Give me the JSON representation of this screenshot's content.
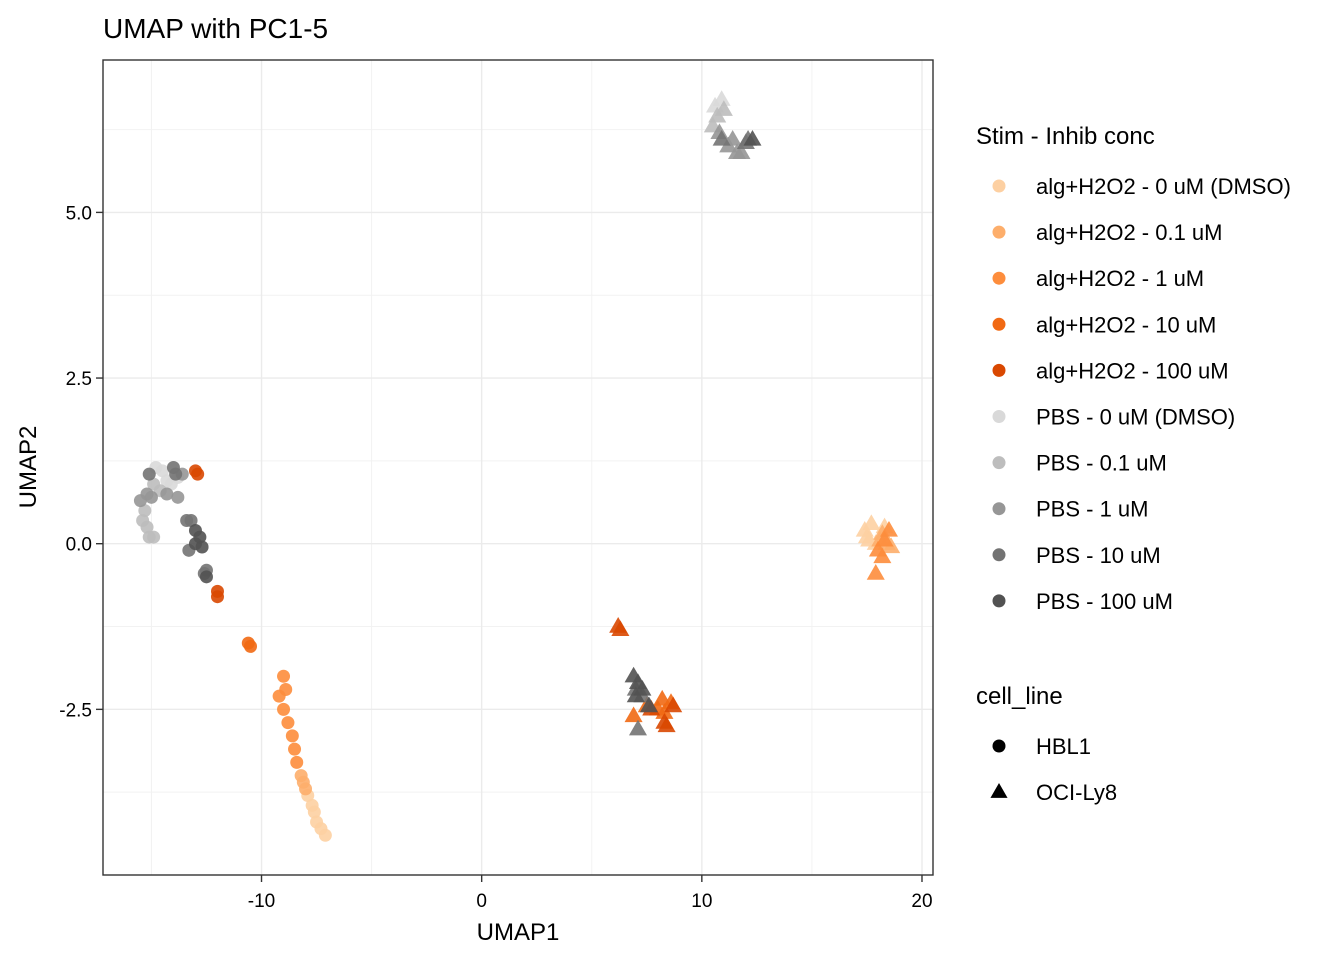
{
  "chart_data": {
    "type": "scatter",
    "title": "UMAP with PC1-5",
    "xlabel": "UMAP1",
    "ylabel": "UMAP2",
    "xlim": [
      -17.2,
      20.5
    ],
    "ylim": [
      -5.0,
      7.3
    ],
    "x_ticks": [
      -10,
      0,
      10,
      20
    ],
    "x_tick_labels": [
      "-10",
      "0",
      "10",
      "20"
    ],
    "y_ticks": [
      -2.5,
      0.0,
      2.5,
      5.0
    ],
    "y_tick_labels": [
      "-2.5",
      "0.0",
      "2.5",
      "5.0"
    ],
    "grid": true,
    "legend_position": "right",
    "color_legend": {
      "title": "Stim - Inhib conc",
      "entries": [
        {
          "label": "alg+H2O2 - 0 uM (DMSO)",
          "color": "#FDD0A2"
        },
        {
          "label": "alg+H2O2 - 0.1 uM",
          "color": "#FDAE6B"
        },
        {
          "label": "alg+H2O2 - 1 uM",
          "color": "#FD8D3C"
        },
        {
          "label": "alg+H2O2 - 10 uM",
          "color": "#F16913"
        },
        {
          "label": "alg+H2O2 - 100 uM",
          "color": "#D94801"
        },
        {
          "label": "PBS - 0 uM (DMSO)",
          "color": "#D9D9D9"
        },
        {
          "label": "PBS - 0.1 uM",
          "color": "#BDBDBD"
        },
        {
          "label": "PBS - 1 uM",
          "color": "#969696"
        },
        {
          "label": "PBS - 10 uM",
          "color": "#737373"
        },
        {
          "label": "PBS - 100 uM",
          "color": "#525252"
        }
      ]
    },
    "shape_legend": {
      "title": "cell_line",
      "entries": [
        {
          "label": "HBL1",
          "shape": "circle"
        },
        {
          "label": "OCI-Ly8",
          "shape": "triangle"
        }
      ]
    },
    "series": [
      {
        "cell_line": "HBL1",
        "group": "alg+H2O2 - 0 uM (DMSO)",
        "points": [
          [
            -7.9,
            -3.8
          ],
          [
            -7.7,
            -3.95
          ],
          [
            -7.6,
            -4.05
          ],
          [
            -7.5,
            -4.2
          ],
          [
            -7.3,
            -4.3
          ],
          [
            -7.1,
            -4.4
          ]
        ]
      },
      {
        "cell_line": "HBL1",
        "group": "alg+H2O2 - 0.1 uM",
        "points": [
          [
            -8.2,
            -3.5
          ],
          [
            -8.1,
            -3.6
          ],
          [
            -8.0,
            -3.7
          ]
        ]
      },
      {
        "cell_line": "HBL1",
        "group": "alg+H2O2 - 1 uM",
        "points": [
          [
            -9.0,
            -2.0
          ],
          [
            -8.9,
            -2.2
          ],
          [
            -9.2,
            -2.3
          ],
          [
            -9.0,
            -2.5
          ],
          [
            -8.8,
            -2.7
          ],
          [
            -8.6,
            -2.9
          ],
          [
            -8.5,
            -3.1
          ],
          [
            -8.4,
            -3.3
          ]
        ]
      },
      {
        "cell_line": "HBL1",
        "group": "alg+H2O2 - 10 uM",
        "points": [
          [
            -10.6,
            -1.5
          ],
          [
            -10.5,
            -1.55
          ]
        ]
      },
      {
        "cell_line": "HBL1",
        "group": "alg+H2O2 - 100 uM",
        "points": [
          [
            -12.9,
            1.05
          ],
          [
            -13.0,
            1.1
          ],
          [
            -12.0,
            -0.72
          ],
          [
            -12.0,
            -0.8
          ]
        ]
      },
      {
        "cell_line": "HBL1",
        "group": "PBS - 0 uM (DMSO)",
        "points": [
          [
            -14.8,
            1.15
          ],
          [
            -14.5,
            1.1
          ],
          [
            -14.3,
            0.95
          ],
          [
            -14.1,
            0.9
          ],
          [
            -13.8,
            1.0
          ]
        ]
      },
      {
        "cell_line": "HBL1",
        "group": "PBS - 0.1 uM",
        "points": [
          [
            -15.4,
            0.35
          ],
          [
            -15.2,
            0.25
          ],
          [
            -15.3,
            0.5
          ],
          [
            -14.9,
            0.9
          ],
          [
            -14.6,
            0.8
          ],
          [
            -15.1,
            0.1
          ],
          [
            -14.9,
            0.1
          ]
        ]
      },
      {
        "cell_line": "HBL1",
        "group": "PBS - 1 uM",
        "points": [
          [
            -15.5,
            0.65
          ],
          [
            -15.2,
            0.75
          ],
          [
            -15.0,
            0.7
          ],
          [
            -14.3,
            0.75
          ],
          [
            -13.8,
            0.7
          ],
          [
            -13.6,
            1.05
          ]
        ]
      },
      {
        "cell_line": "HBL1",
        "group": "PBS - 10 uM",
        "points": [
          [
            -15.1,
            1.05
          ],
          [
            -14.0,
            1.15
          ],
          [
            -13.9,
            1.05
          ],
          [
            -13.4,
            0.35
          ],
          [
            -13.2,
            0.35
          ],
          [
            -13.3,
            -0.1
          ],
          [
            -12.5,
            -0.4
          ],
          [
            -12.6,
            -0.45
          ]
        ]
      },
      {
        "cell_line": "HBL1",
        "group": "PBS - 100 uM",
        "points": [
          [
            -13.0,
            0.2
          ],
          [
            -12.8,
            0.1
          ],
          [
            -13.0,
            0.0
          ],
          [
            -12.7,
            -0.05
          ],
          [
            -12.5,
            -0.5
          ]
        ]
      },
      {
        "cell_line": "OCI-Ly8",
        "group": "alg+H2O2 - 0 uM (DMSO)",
        "points": [
          [
            17.5,
            0.1
          ],
          [
            17.4,
            0.2
          ],
          [
            17.7,
            0.3
          ],
          [
            17.6,
            0.05
          ],
          [
            18.3,
            0.25
          ],
          [
            17.9,
            0.0
          ]
        ]
      },
      {
        "cell_line": "OCI-Ly8",
        "group": "alg+H2O2 - 0.1 uM",
        "points": [
          [
            18.1,
            0.05
          ],
          [
            18.4,
            0.0
          ],
          [
            18.6,
            -0.05
          ],
          [
            18.2,
            0.15
          ]
        ]
      },
      {
        "cell_line": "OCI-Ly8",
        "group": "alg+H2O2 - 1 uM",
        "points": [
          [
            18.0,
            -0.1
          ],
          [
            18.3,
            0.05
          ],
          [
            18.2,
            -0.2
          ],
          [
            18.5,
            0.2
          ],
          [
            17.9,
            -0.45
          ]
        ]
      },
      {
        "cell_line": "OCI-Ly8",
        "group": "alg+H2O2 - 10 uM",
        "points": [
          [
            6.9,
            -2.6
          ],
          [
            7.5,
            -2.45
          ],
          [
            8.0,
            -2.5
          ],
          [
            8.3,
            -2.55
          ],
          [
            8.6,
            -2.4
          ],
          [
            8.2,
            -2.35
          ]
        ]
      },
      {
        "cell_line": "OCI-Ly8",
        "group": "alg+H2O2 - 100 uM",
        "points": [
          [
            6.2,
            -1.25
          ],
          [
            6.3,
            -1.3
          ],
          [
            7.7,
            -2.5
          ],
          [
            8.3,
            -2.7
          ],
          [
            8.4,
            -2.75
          ],
          [
            8.7,
            -2.45
          ]
        ]
      },
      {
        "cell_line": "OCI-Ly8",
        "group": "PBS - 0 uM (DMSO)",
        "points": [
          [
            10.6,
            6.6
          ],
          [
            10.9,
            6.7
          ]
        ]
      },
      {
        "cell_line": "OCI-Ly8",
        "group": "PBS - 0.1 uM",
        "points": [
          [
            10.7,
            6.45
          ],
          [
            11.0,
            6.55
          ],
          [
            10.5,
            6.3
          ]
        ]
      },
      {
        "cell_line": "OCI-Ly8",
        "group": "PBS - 1 uM",
        "points": [
          [
            10.8,
            6.2
          ],
          [
            11.2,
            6.0
          ],
          [
            11.6,
            5.9
          ],
          [
            11.8,
            5.9
          ],
          [
            11.4,
            6.1
          ]
        ]
      },
      {
        "cell_line": "OCI-Ly8",
        "group": "PBS - 10 uM",
        "points": [
          [
            10.9,
            6.1
          ],
          [
            12.0,
            6.05
          ],
          [
            12.1,
            6.1
          ],
          [
            7.0,
            -2.2
          ],
          [
            7.3,
            -2.3
          ],
          [
            7.1,
            -2.8
          ]
        ]
      },
      {
        "cell_line": "OCI-Ly8",
        "group": "PBS - 100 uM",
        "points": [
          [
            12.3,
            6.1
          ],
          [
            6.9,
            -2.0
          ],
          [
            7.1,
            -2.1
          ],
          [
            7.3,
            -2.2
          ],
          [
            7.0,
            -2.3
          ],
          [
            7.6,
            -2.45
          ]
        ]
      }
    ]
  }
}
